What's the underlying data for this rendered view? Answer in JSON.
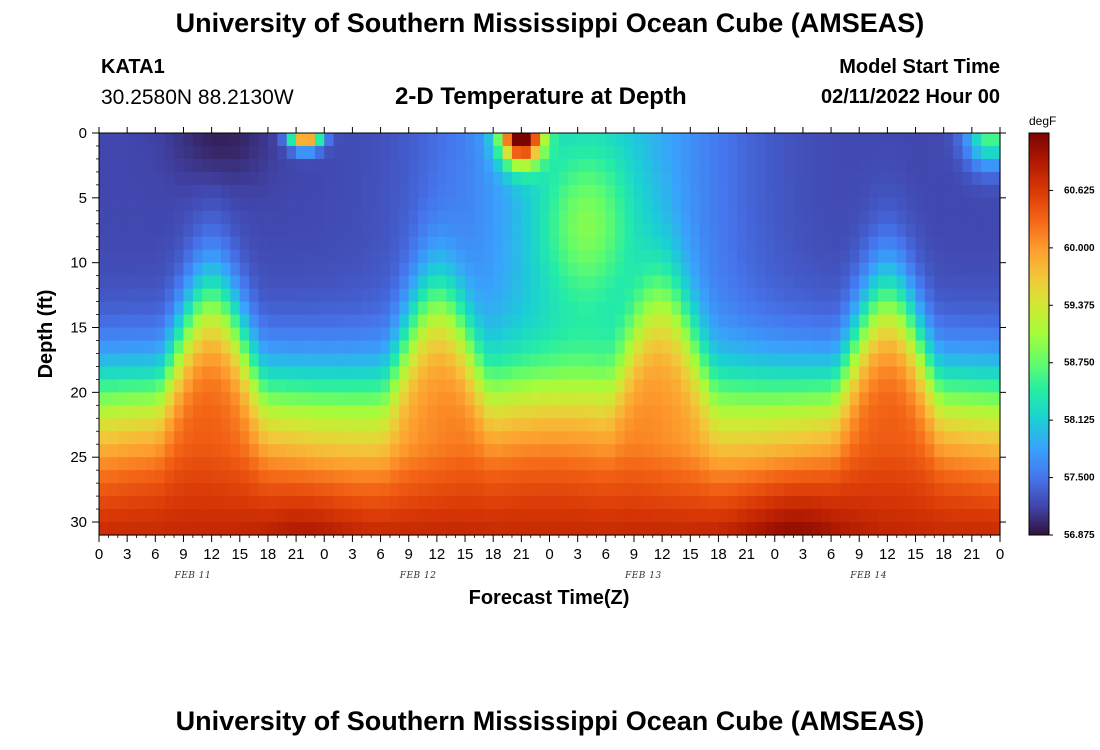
{
  "header": {
    "title": "University of Southern Mississippi Ocean Cube (AMSEAS)",
    "station": "KATA1",
    "coordinates": "30.2580N  88.2130W",
    "subtitle": "2-D Temperature at Depth",
    "model_start_label": "Model Start Time",
    "model_start_value": "02/11/2022 Hour 00"
  },
  "footer": {
    "title": "University of Southern Mississippi Ocean Cube (AMSEAS)"
  },
  "chart_data": {
    "type": "heatmap",
    "xlabel": "Forecast Time(Z)",
    "ylabel": "Depth (ft)",
    "x_tick_labels": [
      "0",
      "3",
      "6",
      "9",
      "12",
      "15",
      "18",
      "21",
      "0",
      "3",
      "6",
      "9",
      "12",
      "15",
      "18",
      "21",
      "0",
      "3",
      "6",
      "9",
      "12",
      "15",
      "18",
      "21",
      "0",
      "3",
      "6",
      "9",
      "12",
      "15",
      "18",
      "21",
      "0"
    ],
    "x_range_hours": [
      0,
      96
    ],
    "date_labels": [
      {
        "label": "FEB 11",
        "hour": 10
      },
      {
        "label": "FEB 12",
        "hour": 34
      },
      {
        "label": "FEB 13",
        "hour": 58
      },
      {
        "label": "FEB 14",
        "hour": 82
      }
    ],
    "y_ticks": [
      0,
      5,
      10,
      15,
      20,
      25,
      30
    ],
    "y_range": [
      0,
      31
    ],
    "y_inverted": true,
    "colorbar": {
      "unit": "degF",
      "range": [
        56.875,
        61.25
      ],
      "tick_labels": [
        "60.625",
        "60.000",
        "59.375",
        "58.750",
        "58.125",
        "57.500",
        "56.875"
      ],
      "colors": [
        "#30123b",
        "#4145ab",
        "#4675ed",
        "#39a2fc",
        "#1bcfd4",
        "#24eca6",
        "#61fc6c",
        "#a4fc3b",
        "#d1e834",
        "#f3c63a",
        "#fe9b2d",
        "#f36315",
        "#d93806",
        "#b11901",
        "#7a0402"
      ]
    },
    "summary": "Cold water (about 57 degF) near surface through ~hour 72 with warm surface pulses near hours 22, 45 and 95; a warm layer (about 60.5-61 degF) below 20 ft throughout, rising toward ~12 ft around hours 12, 36, 60 and 84."
  }
}
